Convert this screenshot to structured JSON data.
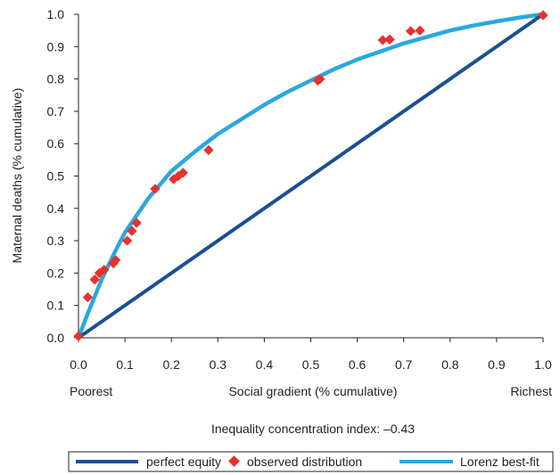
{
  "chart_data": {
    "type": "scatter",
    "title": "",
    "xlabel": "Social gradient (% cumulative)",
    "ylabel": "Maternal deaths (% cumulative)",
    "x_left_label": "Poorest",
    "x_right_label": "Richest",
    "annotation": "Inequality concentration index: –0.43",
    "xlim": [
      0,
      1
    ],
    "ylim": [
      0,
      1
    ],
    "x_ticks": [
      "0.0",
      "0.1",
      "0.2",
      "0.3",
      "0.4",
      "0.5",
      "0.6",
      "0.7",
      "0.8",
      "0.9",
      "1.0"
    ],
    "y_ticks": [
      "0.0",
      "0.1",
      "0.2",
      "0.3",
      "0.4",
      "0.5",
      "0.6",
      "0.7",
      "0.8",
      "0.9",
      "1.0"
    ],
    "grid": false,
    "legend_position": "bottom",
    "series": [
      {
        "name": "perfect equity",
        "kind": "line",
        "color": "#1a5091",
        "x": [
          0,
          1
        ],
        "y": [
          0,
          1
        ]
      },
      {
        "name": "observed distribution",
        "kind": "scatter",
        "marker": "diamond",
        "color": "#e8312f",
        "x": [
          0.0,
          0.02,
          0.035,
          0.045,
          0.055,
          0.075,
          0.08,
          0.105,
          0.115,
          0.125,
          0.165,
          0.205,
          0.215,
          0.225,
          0.28,
          0.515,
          0.52,
          0.655,
          0.67,
          0.715,
          0.735,
          1.0
        ],
        "y": [
          0.005,
          0.125,
          0.18,
          0.2,
          0.21,
          0.23,
          0.24,
          0.3,
          0.33,
          0.355,
          0.46,
          0.49,
          0.5,
          0.51,
          0.58,
          0.795,
          0.8,
          0.92,
          0.922,
          0.948,
          0.95,
          0.997
        ]
      },
      {
        "name": "Lorenz best-fit",
        "kind": "line",
        "color": "#29a8e0",
        "x": [
          0.0,
          0.02,
          0.05,
          0.08,
          0.1,
          0.15,
          0.2,
          0.25,
          0.3,
          0.35,
          0.4,
          0.45,
          0.5,
          0.55,
          0.6,
          0.65,
          0.7,
          0.75,
          0.8,
          0.85,
          0.9,
          0.95,
          1.0
        ],
        "y": [
          0.0,
          0.075,
          0.18,
          0.27,
          0.325,
          0.43,
          0.515,
          0.575,
          0.63,
          0.675,
          0.72,
          0.76,
          0.795,
          0.83,
          0.86,
          0.885,
          0.91,
          0.93,
          0.95,
          0.965,
          0.978,
          0.99,
          1.0
        ]
      }
    ]
  }
}
